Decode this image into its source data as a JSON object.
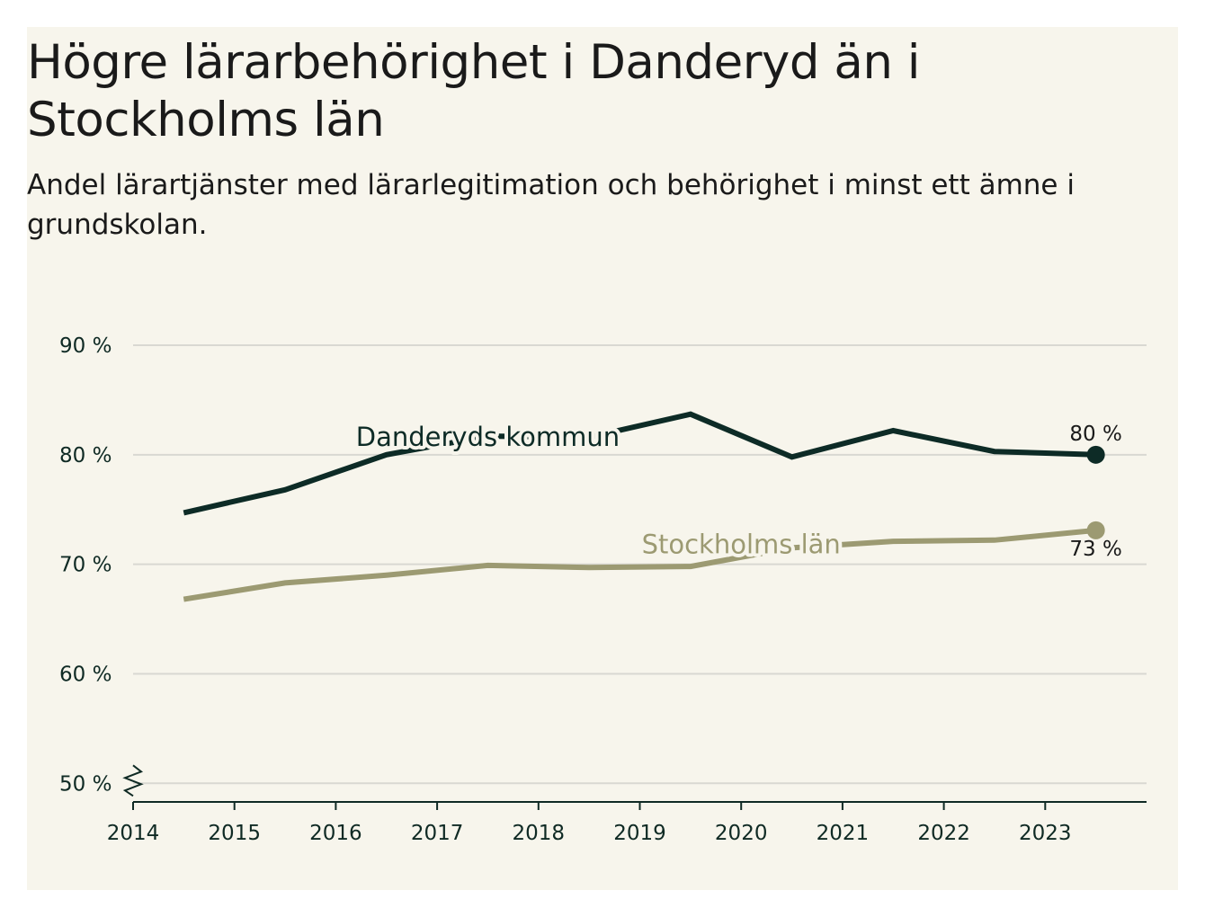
{
  "chart_data": {
    "type": "line",
    "title": "Högre lärarbehörighet i Danderyd än i Stockholms län",
    "subtitle": "Andel lärartjänster med lärarlegitimation och behörighet i minst ett ämne i grundskolan.",
    "x": [
      2014.5,
      2015.5,
      2016.5,
      2017.5,
      2018.5,
      2019.5,
      2020.5,
      2021.5,
      2022.5,
      2023.5
    ],
    "x_ticks": [
      2014,
      2015,
      2016,
      2017,
      2018,
      2019,
      2020,
      2021,
      2022,
      2023
    ],
    "x_tick_labels": [
      "2014",
      "2015",
      "2016",
      "2017",
      "2018",
      "2019",
      "2020",
      "2021",
      "2022",
      "2023"
    ],
    "y_ticks": [
      50,
      60,
      70,
      80,
      90
    ],
    "y_tick_labels": [
      "50 %",
      "60 %",
      "70 %",
      "80 %",
      "90 %"
    ],
    "ylim": [
      48.3,
      90
    ],
    "xlim": [
      2014,
      2024
    ],
    "xlabel": "",
    "ylabel": "",
    "grid": true,
    "axis_break": true,
    "series": [
      {
        "name": "Danderyds kommun",
        "color": "#0d2b26",
        "values": [
          74.7,
          76.8,
          80.0,
          81.7,
          81.6,
          83.7,
          79.8,
          82.2,
          80.3,
          80.0
        ],
        "end_label": "80 %"
      },
      {
        "name": "Stockholms län",
        "color": "#9c9a72",
        "values": [
          66.8,
          68.3,
          69.0,
          69.9,
          69.7,
          69.8,
          71.5,
          72.1,
          72.2,
          73.1
        ],
        "end_label": "73 %"
      }
    ]
  }
}
